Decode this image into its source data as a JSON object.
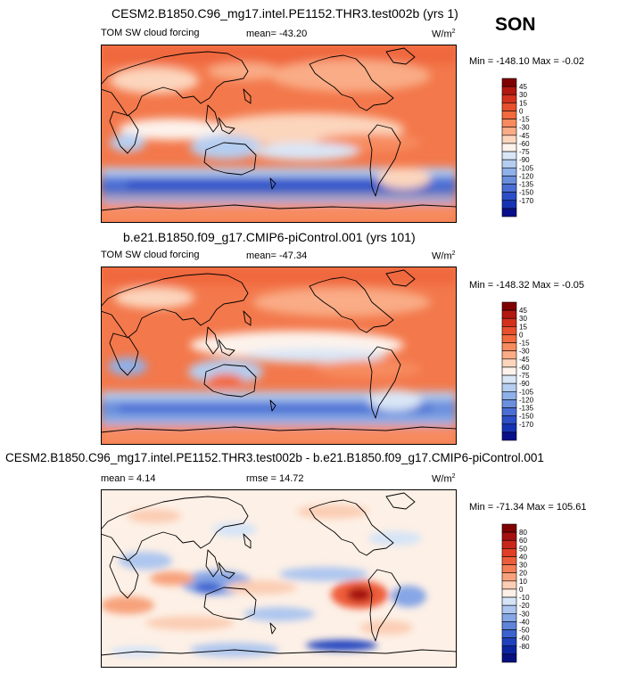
{
  "season": "SON",
  "panels": [
    {
      "title": "CESM2.B1850.C96_mg17.intel.PE1152.THR3.test002b (yrs 1)",
      "left_label": "TOM SW cloud forcing",
      "mean_label": "mean= -43.20",
      "units": "W/m",
      "units_sup": "2",
      "minmax": "Min = -148.10 Max =  -0.02",
      "colorbar": {
        "levels": [
          "45",
          "30",
          "15",
          "0",
          "-15",
          "-30",
          "-45",
          "-60",
          "-75",
          "-90",
          "-105",
          "-120",
          "-135",
          "-150",
          "-170"
        ],
        "colors": [
          "#7f0000",
          "#b2180e",
          "#d3311b",
          "#e8502d",
          "#f26a3e",
          "#f78b5f",
          "#f9ac86",
          "#fcd5bd",
          "#fdf3ec",
          "#d9e6f7",
          "#b5cdf0",
          "#8fb0e8",
          "#6b8fdd",
          "#4a6ed4",
          "#2c4ec7",
          "#1633b4",
          "#080f8a"
        ]
      }
    },
    {
      "title": "b.e21.B1850.f09_g17.CMIP6-piControl.001 (yrs 101)",
      "left_label": "TOM SW cloud forcing",
      "mean_label": "mean= -47.34",
      "units": "W/m",
      "units_sup": "2",
      "minmax": "Min = -148.32 Max =  -0.05",
      "colorbar": {
        "levels": [
          "45",
          "30",
          "15",
          "0",
          "-15",
          "-30",
          "-45",
          "-60",
          "-75",
          "-90",
          "-105",
          "-120",
          "-135",
          "-150",
          "-170"
        ],
        "colors": [
          "#7f0000",
          "#b2180e",
          "#d3311b",
          "#e8502d",
          "#f26a3e",
          "#f78b5f",
          "#f9ac86",
          "#fcd5bd",
          "#fdf3ec",
          "#d9e6f7",
          "#b5cdf0",
          "#8fb0e8",
          "#6b8fdd",
          "#4a6ed4",
          "#2c4ec7",
          "#1633b4",
          "#080f8a"
        ]
      }
    },
    {
      "title": "CESM2.B1850.C96_mg17.intel.PE1152.THR3.test002b - b.e21.B1850.f09_g17.CMIP6-piControl.001",
      "left_label": "mean =  4.14",
      "mean_label": "rmse =  14.72",
      "units": "W/m",
      "units_sup": "2",
      "minmax": "Min = -71.34 Max = 105.61",
      "colorbar": {
        "levels": [
          "80",
          "60",
          "50",
          "40",
          "30",
          "20",
          "10",
          "0",
          "-10",
          "-20",
          "-30",
          "-40",
          "-50",
          "-60",
          "-80"
        ],
        "colors": [
          "#7f0000",
          "#a50f0f",
          "#c8261a",
          "#e03e26",
          "#ee5d3a",
          "#f47e55",
          "#f7a27c",
          "#fbcdb4",
          "#fdf0e6",
          "#d5e4f7",
          "#aec6ef",
          "#86a6e5",
          "#5f84da",
          "#3c62cf",
          "#1f41bd",
          "#0c24a0",
          "#06107e"
        ]
      }
    }
  ],
  "chart_data": [
    {
      "type": "heatmap",
      "title": "CESM2.B1850.C96_mg17.intel.PE1152.THR3.test002b (yrs 1)",
      "variable": "TOM SW cloud forcing",
      "season": "SON",
      "units": "W/m2",
      "mean": -43.2,
      "min": -148.1,
      "max": -0.02,
      "contour_levels": [
        -170,
        -150,
        -135,
        -120,
        -105,
        -90,
        -75,
        -60,
        -45,
        -30,
        -15,
        0,
        15,
        30,
        45
      ]
    },
    {
      "type": "heatmap",
      "title": "b.e21.B1850.f09_g17.CMIP6-piControl.001 (yrs 101)",
      "variable": "TOM SW cloud forcing",
      "season": "SON",
      "units": "W/m2",
      "mean": -47.34,
      "min": -148.32,
      "max": -0.05,
      "contour_levels": [
        -170,
        -150,
        -135,
        -120,
        -105,
        -90,
        -75,
        -60,
        -45,
        -30,
        -15,
        0,
        15,
        30,
        45
      ]
    },
    {
      "type": "heatmap",
      "title": "CESM2.B1850.C96_mg17.intel.PE1152.THR3.test002b - b.e21.B1850.f09_g17.CMIP6-piControl.001",
      "season": "SON",
      "units": "W/m2",
      "mean": 4.14,
      "rmse": 14.72,
      "min": -71.34,
      "max": 105.61,
      "contour_levels": [
        -80,
        -60,
        -50,
        -40,
        -30,
        -20,
        -10,
        0,
        10,
        20,
        30,
        40,
        50,
        60,
        80
      ]
    }
  ]
}
